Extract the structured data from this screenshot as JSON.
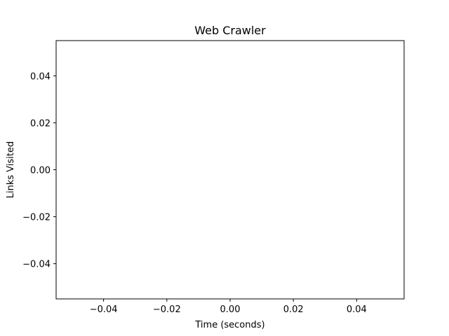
{
  "chart_data": {
    "type": "line",
    "title": "Web Crawler",
    "xlabel": "Time (seconds)",
    "ylabel": "Links Visited",
    "xlim": [
      -0.055,
      0.055
    ],
    "ylim": [
      -0.055,
      0.055
    ],
    "xticks": [
      -0.04,
      -0.02,
      0.0,
      0.02,
      0.04
    ],
    "xtick_labels": [
      "−0.04",
      "−0.02",
      "0.00",
      "0.02",
      "0.04"
    ],
    "yticks": [
      0.04,
      0.02,
      0.0,
      -0.02,
      -0.04
    ],
    "ytick_labels": [
      "0.04",
      "0.02",
      "0.00",
      "−0.02",
      "−0.04"
    ],
    "series": [
      {
        "x": [],
        "y": []
      }
    ],
    "grid": false,
    "legend": "none"
  }
}
